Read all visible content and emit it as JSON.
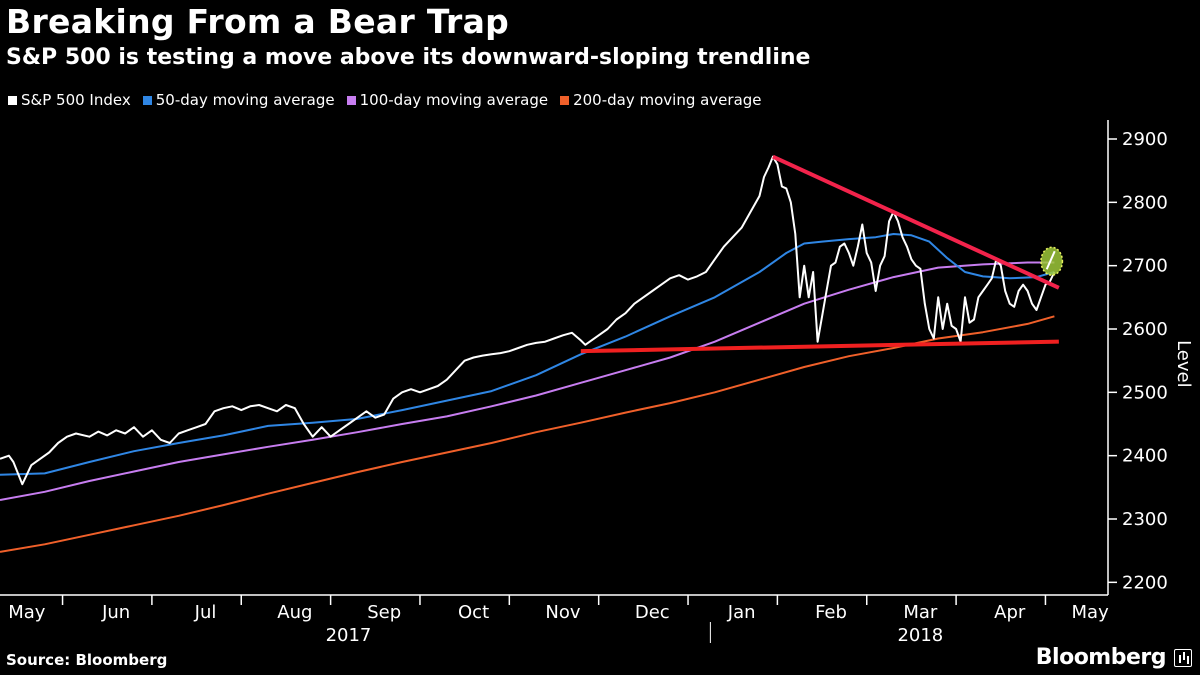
{
  "title": "Breaking From a Bear Trap",
  "subtitle": "S&P 500 is testing a move above its downward-sloping trendline",
  "source": "Source: Bloomberg",
  "brand": "Bloomberg",
  "chart_data": {
    "type": "line",
    "title": "Breaking From a Bear Trap",
    "subtitle": "S&P 500 is testing a move above its downward-sloping trendline",
    "ylabel": "Level",
    "xlabel": "",
    "ylim": [
      2180,
      2930
    ],
    "yticks": [
      2200,
      2300,
      2400,
      2500,
      2600,
      2700,
      2800,
      2900
    ],
    "xrange": [
      0,
      12.4
    ],
    "month_labels": [
      {
        "label": "May",
        "pos": 0.3
      },
      {
        "label": "Jun",
        "pos": 1.3
      },
      {
        "label": "Jul",
        "pos": 2.3
      },
      {
        "label": "Aug",
        "pos": 3.3
      },
      {
        "label": "Sep",
        "pos": 4.3
      },
      {
        "label": "Oct",
        "pos": 5.3
      },
      {
        "label": "Nov",
        "pos": 6.3
      },
      {
        "label": "Dec",
        "pos": 7.3
      },
      {
        "label": "Jan",
        "pos": 8.3
      },
      {
        "label": "Feb",
        "pos": 9.3
      },
      {
        "label": "Mar",
        "pos": 10.3
      },
      {
        "label": "Apr",
        "pos": 11.3
      },
      {
        "label": "May",
        "pos": 12.2
      }
    ],
    "month_ticks": [
      0.7,
      1.7,
      2.7,
      3.7,
      4.7,
      5.7,
      6.7,
      7.7,
      8.7,
      9.7,
      10.7,
      11.7
    ],
    "year_labels": [
      {
        "label": "2017",
        "pos": 3.9
      },
      {
        "label": "2018",
        "pos": 10.3
      }
    ],
    "year_divider": 7.95,
    "legend_position": "top-left",
    "series": [
      {
        "name": "S&P 500 Index",
        "color": "#ffffff",
        "width": 2,
        "points": [
          [
            0.0,
            2395
          ],
          [
            0.1,
            2400
          ],
          [
            0.15,
            2390
          ],
          [
            0.25,
            2355
          ],
          [
            0.35,
            2385
          ],
          [
            0.45,
            2395
          ],
          [
            0.55,
            2405
          ],
          [
            0.65,
            2420
          ],
          [
            0.75,
            2430
          ],
          [
            0.85,
            2435
          ],
          [
            1.0,
            2430
          ],
          [
            1.1,
            2438
          ],
          [
            1.2,
            2432
          ],
          [
            1.3,
            2440
          ],
          [
            1.4,
            2435
          ],
          [
            1.5,
            2445
          ],
          [
            1.6,
            2430
          ],
          [
            1.7,
            2440
          ],
          [
            1.8,
            2425
          ],
          [
            1.9,
            2420
          ],
          [
            2.0,
            2435
          ],
          [
            2.1,
            2440
          ],
          [
            2.2,
            2445
          ],
          [
            2.3,
            2450
          ],
          [
            2.4,
            2470
          ],
          [
            2.5,
            2475
          ],
          [
            2.6,
            2478
          ],
          [
            2.7,
            2472
          ],
          [
            2.8,
            2478
          ],
          [
            2.9,
            2480
          ],
          [
            3.0,
            2475
          ],
          [
            3.1,
            2470
          ],
          [
            3.2,
            2480
          ],
          [
            3.3,
            2475
          ],
          [
            3.4,
            2450
          ],
          [
            3.5,
            2430
          ],
          [
            3.6,
            2445
          ],
          [
            3.7,
            2430
          ],
          [
            3.8,
            2440
          ],
          [
            3.9,
            2450
          ],
          [
            4.0,
            2460
          ],
          [
            4.1,
            2470
          ],
          [
            4.2,
            2460
          ],
          [
            4.3,
            2465
          ],
          [
            4.4,
            2490
          ],
          [
            4.5,
            2500
          ],
          [
            4.6,
            2505
          ],
          [
            4.7,
            2500
          ],
          [
            4.8,
            2505
          ],
          [
            4.9,
            2510
          ],
          [
            5.0,
            2520
          ],
          [
            5.1,
            2535
          ],
          [
            5.2,
            2550
          ],
          [
            5.3,
            2555
          ],
          [
            5.4,
            2558
          ],
          [
            5.5,
            2560
          ],
          [
            5.6,
            2562
          ],
          [
            5.7,
            2565
          ],
          [
            5.8,
            2570
          ],
          [
            5.9,
            2575
          ],
          [
            6.0,
            2578
          ],
          [
            6.1,
            2580
          ],
          [
            6.2,
            2585
          ],
          [
            6.3,
            2590
          ],
          [
            6.4,
            2594
          ],
          [
            6.5,
            2582
          ],
          [
            6.55,
            2575
          ],
          [
            6.6,
            2580
          ],
          [
            6.7,
            2590
          ],
          [
            6.8,
            2600
          ],
          [
            6.9,
            2615
          ],
          [
            7.0,
            2625
          ],
          [
            7.1,
            2640
          ],
          [
            7.2,
            2650
          ],
          [
            7.3,
            2660
          ],
          [
            7.4,
            2670
          ],
          [
            7.5,
            2680
          ],
          [
            7.6,
            2685
          ],
          [
            7.7,
            2678
          ],
          [
            7.8,
            2683
          ],
          [
            7.9,
            2690
          ],
          [
            8.0,
            2710
          ],
          [
            8.1,
            2730
          ],
          [
            8.2,
            2745
          ],
          [
            8.3,
            2760
          ],
          [
            8.4,
            2785
          ],
          [
            8.5,
            2810
          ],
          [
            8.55,
            2840
          ],
          [
            8.6,
            2855
          ],
          [
            8.65,
            2872
          ],
          [
            8.7,
            2860
          ],
          [
            8.75,
            2825
          ],
          [
            8.8,
            2822
          ],
          [
            8.85,
            2800
          ],
          [
            8.9,
            2750
          ],
          [
            8.95,
            2650
          ],
          [
            9.0,
            2700
          ],
          [
            9.05,
            2650
          ],
          [
            9.1,
            2690
          ],
          [
            9.15,
            2580
          ],
          [
            9.2,
            2620
          ],
          [
            9.25,
            2660
          ],
          [
            9.3,
            2700
          ],
          [
            9.35,
            2705
          ],
          [
            9.4,
            2730
          ],
          [
            9.45,
            2735
          ],
          [
            9.5,
            2720
          ],
          [
            9.55,
            2700
          ],
          [
            9.6,
            2730
          ],
          [
            9.65,
            2765
          ],
          [
            9.7,
            2720
          ],
          [
            9.75,
            2705
          ],
          [
            9.8,
            2660
          ],
          [
            9.85,
            2700
          ],
          [
            9.9,
            2715
          ],
          [
            9.95,
            2770
          ],
          [
            10.0,
            2785
          ],
          [
            10.05,
            2770
          ],
          [
            10.1,
            2745
          ],
          [
            10.15,
            2730
          ],
          [
            10.2,
            2710
          ],
          [
            10.25,
            2700
          ],
          [
            10.3,
            2695
          ],
          [
            10.35,
            2640
          ],
          [
            10.4,
            2600
          ],
          [
            10.45,
            2585
          ],
          [
            10.5,
            2650
          ],
          [
            10.55,
            2600
          ],
          [
            10.6,
            2640
          ],
          [
            10.65,
            2605
          ],
          [
            10.7,
            2600
          ],
          [
            10.75,
            2580
          ],
          [
            10.8,
            2650
          ],
          [
            10.85,
            2610
          ],
          [
            10.9,
            2615
          ],
          [
            10.95,
            2650
          ],
          [
            11.0,
            2660
          ],
          [
            11.05,
            2670
          ],
          [
            11.1,
            2680
          ],
          [
            11.15,
            2710
          ],
          [
            11.2,
            2700
          ],
          [
            11.25,
            2660
          ],
          [
            11.3,
            2640
          ],
          [
            11.35,
            2635
          ],
          [
            11.4,
            2660
          ],
          [
            11.45,
            2670
          ],
          [
            11.5,
            2660
          ],
          [
            11.55,
            2640
          ],
          [
            11.6,
            2630
          ],
          [
            11.65,
            2650
          ],
          [
            11.7,
            2670
          ],
          [
            11.75,
            2675
          ],
          [
            11.8,
            2690
          ]
        ]
      },
      {
        "name": "50-day moving average",
        "color": "#2f86e4",
        "width": 2,
        "points": [
          [
            0.0,
            2370
          ],
          [
            0.5,
            2372
          ],
          [
            1.0,
            2390
          ],
          [
            1.5,
            2407
          ],
          [
            2.0,
            2420
          ],
          [
            2.5,
            2432
          ],
          [
            3.0,
            2447
          ],
          [
            3.5,
            2452
          ],
          [
            4.0,
            2458
          ],
          [
            4.5,
            2472
          ],
          [
            5.0,
            2487
          ],
          [
            5.5,
            2502
          ],
          [
            6.0,
            2527
          ],
          [
            6.5,
            2560
          ],
          [
            7.0,
            2588
          ],
          [
            7.5,
            2620
          ],
          [
            8.0,
            2650
          ],
          [
            8.5,
            2690
          ],
          [
            8.8,
            2720
          ],
          [
            9.0,
            2735
          ],
          [
            9.2,
            2738
          ],
          [
            9.5,
            2742
          ],
          [
            9.8,
            2745
          ],
          [
            10.0,
            2750
          ],
          [
            10.2,
            2748
          ],
          [
            10.4,
            2738
          ],
          [
            10.6,
            2712
          ],
          [
            10.8,
            2690
          ],
          [
            11.0,
            2683
          ],
          [
            11.3,
            2680
          ],
          [
            11.6,
            2682
          ],
          [
            11.8,
            2690
          ]
        ]
      },
      {
        "name": "100-day moving average",
        "color": "#c77df0",
        "width": 2,
        "points": [
          [
            0.0,
            2330
          ],
          [
            0.5,
            2343
          ],
          [
            1.0,
            2360
          ],
          [
            1.5,
            2375
          ],
          [
            2.0,
            2390
          ],
          [
            2.5,
            2402
          ],
          [
            3.0,
            2414
          ],
          [
            3.5,
            2425
          ],
          [
            4.0,
            2437
          ],
          [
            4.5,
            2450
          ],
          [
            5.0,
            2462
          ],
          [
            5.5,
            2478
          ],
          [
            6.0,
            2495
          ],
          [
            6.5,
            2515
          ],
          [
            7.0,
            2535
          ],
          [
            7.5,
            2555
          ],
          [
            8.0,
            2580
          ],
          [
            8.5,
            2610
          ],
          [
            9.0,
            2640
          ],
          [
            9.5,
            2662
          ],
          [
            10.0,
            2682
          ],
          [
            10.5,
            2697
          ],
          [
            11.0,
            2702
          ],
          [
            11.5,
            2705
          ],
          [
            11.8,
            2705
          ]
        ]
      },
      {
        "name": "200-day moving average",
        "color": "#f0602a",
        "width": 2,
        "points": [
          [
            0.0,
            2248
          ],
          [
            0.5,
            2260
          ],
          [
            1.0,
            2275
          ],
          [
            1.5,
            2290
          ],
          [
            2.0,
            2305
          ],
          [
            2.5,
            2322
          ],
          [
            3.0,
            2340
          ],
          [
            3.5,
            2357
          ],
          [
            4.0,
            2374
          ],
          [
            4.5,
            2390
          ],
          [
            5.0,
            2405
          ],
          [
            5.5,
            2420
          ],
          [
            6.0,
            2437
          ],
          [
            6.5,
            2452
          ],
          [
            7.0,
            2468
          ],
          [
            7.5,
            2483
          ],
          [
            8.0,
            2500
          ],
          [
            8.5,
            2520
          ],
          [
            9.0,
            2540
          ],
          [
            9.5,
            2557
          ],
          [
            10.0,
            2570
          ],
          [
            10.5,
            2585
          ],
          [
            11.0,
            2595
          ],
          [
            11.5,
            2608
          ],
          [
            11.8,
            2620
          ]
        ]
      }
    ],
    "annotations": [
      {
        "name": "downward-trendline",
        "color": "#f2234b",
        "width": 4,
        "from": [
          8.65,
          2872
        ],
        "to": [
          11.85,
          2665
        ]
      },
      {
        "name": "support-line",
        "color": "#f02020",
        "width": 4,
        "from": [
          6.5,
          2565
        ],
        "to": [
          11.85,
          2580
        ]
      },
      {
        "name": "breakout-highlight",
        "color": "#9ec83a",
        "center": [
          11.77,
          2707
        ],
        "rx": 0.12,
        "ry": 22
      }
    ]
  }
}
